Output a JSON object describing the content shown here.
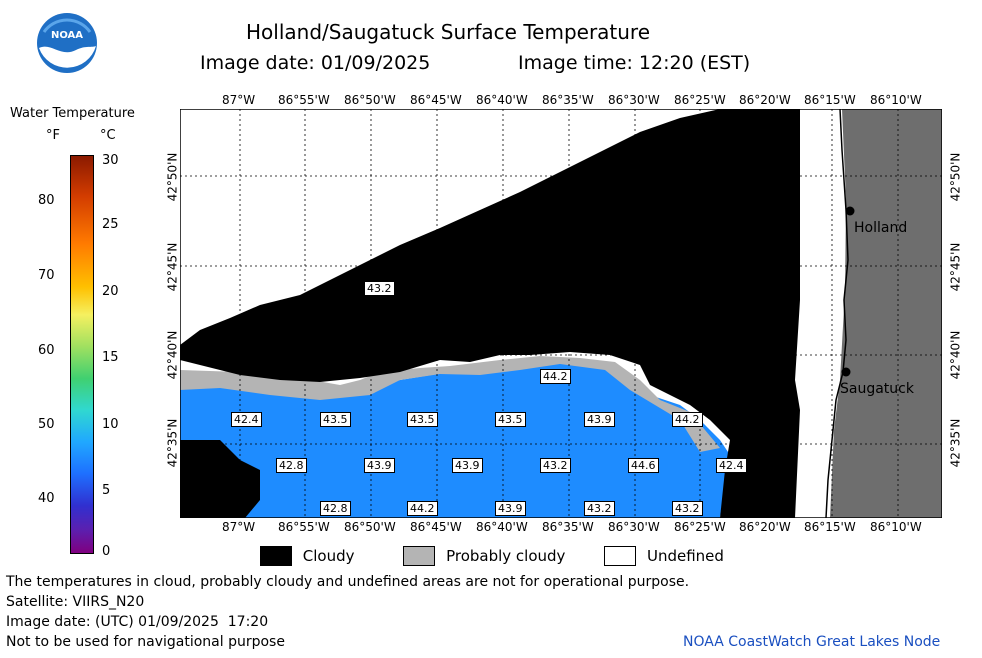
{
  "header": {
    "title": "Holland/Saugatuck Surface Temperature",
    "image_date": "Image date: 01/09/2025",
    "image_time": "Image time: 12:20 (EST)"
  },
  "logo": {
    "text": "NOAA"
  },
  "colorbar": {
    "title": "Water Temperature",
    "unit_f": "°F",
    "unit_c": "°C",
    "f_ticks": [
      "80",
      "70",
      "60",
      "50",
      "40"
    ],
    "c_ticks": [
      "30",
      "25",
      "20",
      "15",
      "10",
      "5",
      "0"
    ]
  },
  "map": {
    "lon_labels_top": [
      "87°W",
      "86°55'W",
      "86°50'W",
      "86°45'W",
      "86°40'W",
      "86°35'W",
      "86°30'W",
      "86°25'W",
      "86°20'W",
      "86°15'W",
      "86°10'W"
    ],
    "lon_labels_bottom": [
      "87°W",
      "86°55'W",
      "86°50'W",
      "86°45'W",
      "86°40'W",
      "86°35'W",
      "86°30'W",
      "86°25'W",
      "86°20'W",
      "86°15'W",
      "86°10'W"
    ],
    "lat_labels": [
      "42°50'N",
      "42°45'N",
      "42°40'N",
      "42°35'N"
    ],
    "cities": [
      "Holland",
      "Saugatuck"
    ],
    "temps": [
      "43.2",
      "42.4",
      "43.5",
      "43.5",
      "43.5",
      "43.9",
      "44.2",
      "44.2",
      "42.8",
      "43.9",
      "43.9",
      "43.2",
      "44.6",
      "42.4",
      "42.8",
      "44.2",
      "43.9",
      "43.2",
      "43.2"
    ]
  },
  "legend": {
    "cloudy": "Cloudy",
    "probably_cloudy": "Probably cloudy",
    "undefined": "Undefined"
  },
  "footer": {
    "disclaimer": "The temperatures in cloud, probably cloudy and undefined areas are not for operational purpose.",
    "satellite": "Satellite: VIIRS_N20",
    "utc_date": "Image date: (UTC) 01/09/2025  17:20",
    "nav_warning": "Not to be used for navigational purpose",
    "credit": "NOAA CoastWatch Great Lakes Node"
  },
  "colors": {
    "cloudy": "#000000",
    "probably_cloudy": "#b4b4b4",
    "water": "#1e8cff",
    "water_dark": "#1470e6",
    "land": "#6e6e6e",
    "undefined": "#ffffff",
    "credit": "#1a4fc0"
  }
}
